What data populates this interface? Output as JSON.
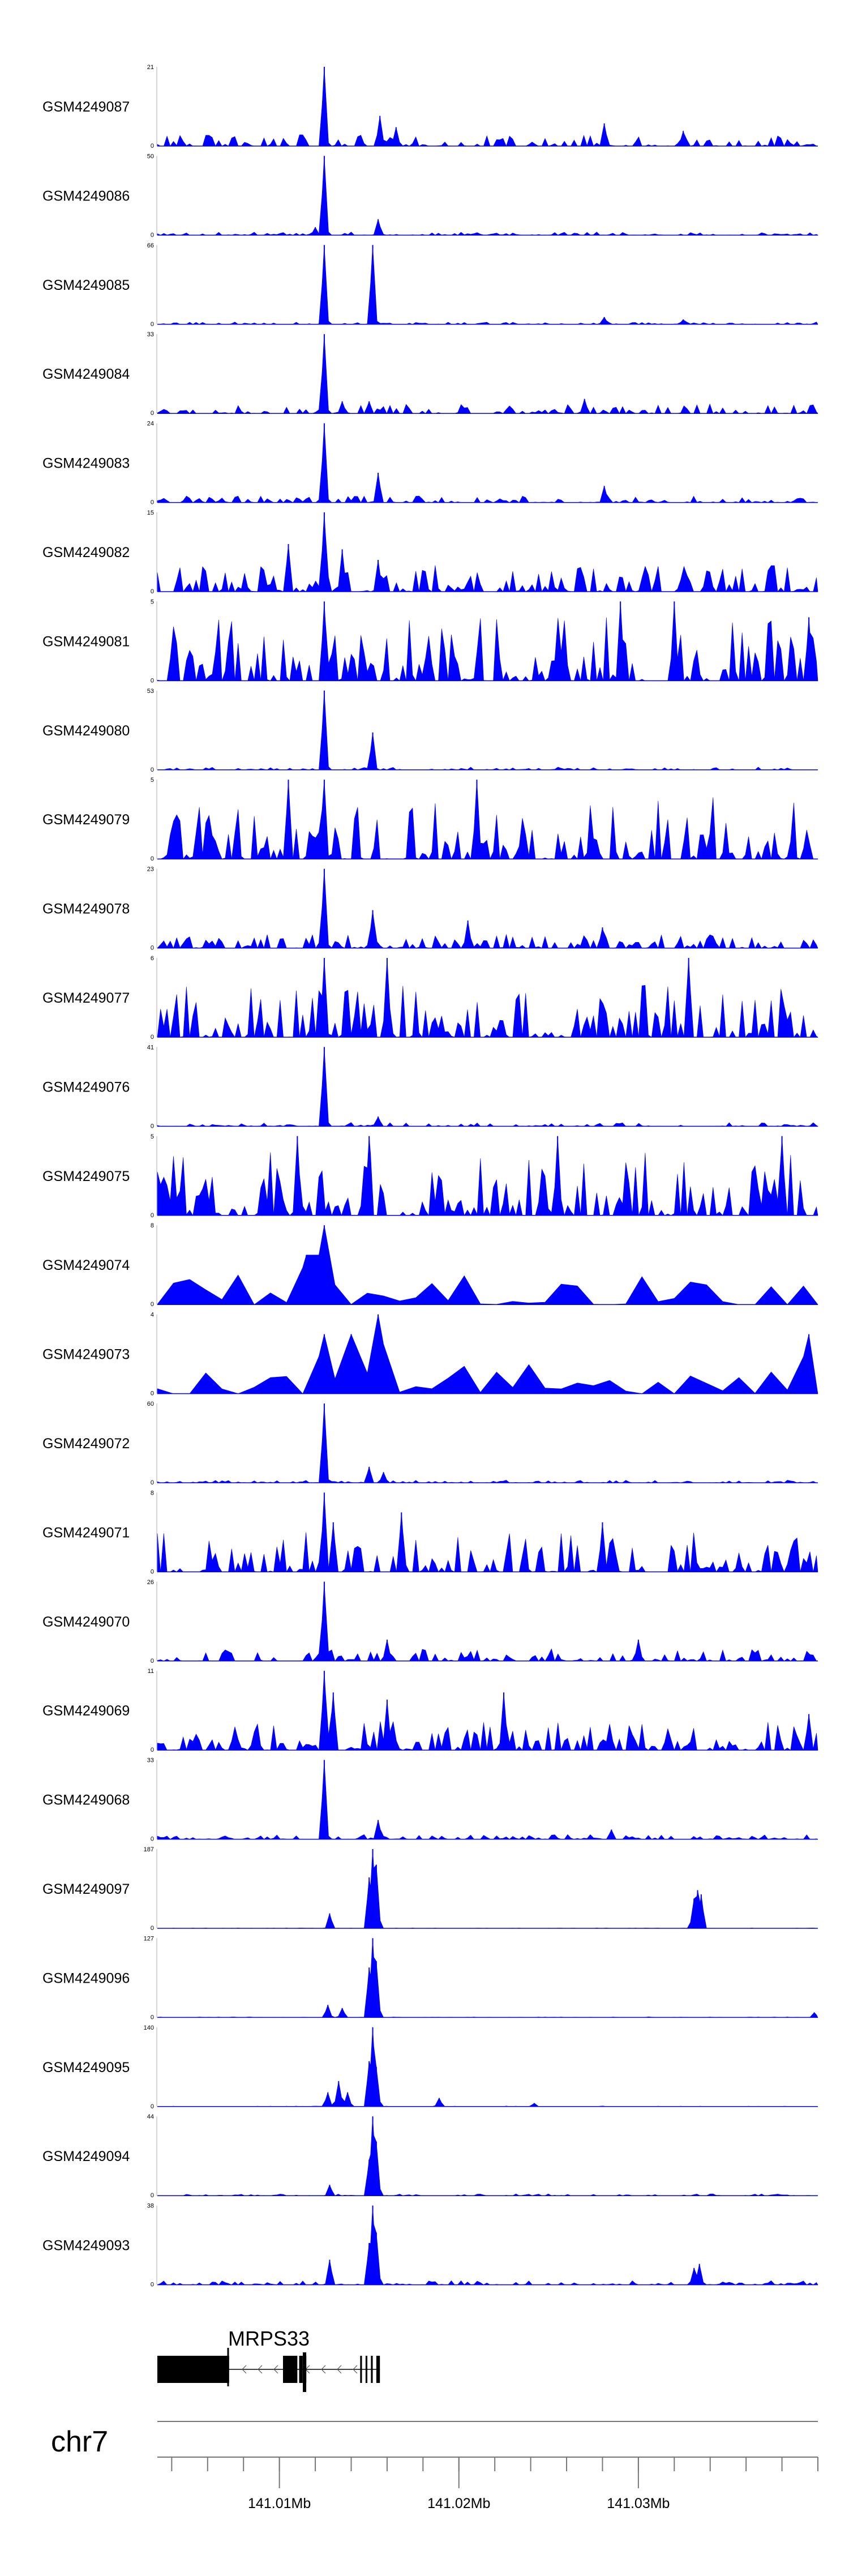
{
  "chart_data": {
    "type": "area",
    "title": "",
    "colors": {
      "signal": "#0000ff",
      "gene": "#000000",
      "axis": "#777777"
    },
    "xlim": [
      141.0032,
      141.04
    ],
    "x_unit": "Mb",
    "tracks": [
      {
        "name": "GSM4249087",
        "ymax": 21,
        "ymin": 0,
        "peaks": [
          [
            141.0125,
            21
          ],
          [
            141.0156,
            8
          ],
          [
            141.0165,
            5
          ],
          [
            141.0281,
            6
          ],
          [
            141.0325,
            4
          ]
        ],
        "noise": 3,
        "sparse": false
      },
      {
        "name": "GSM4249086",
        "ymax": 50,
        "ymin": 0,
        "peaks": [
          [
            141.0125,
            50
          ],
          [
            141.0155,
            10
          ],
          [
            141.012,
            5
          ]
        ],
        "noise": 2,
        "sparse": false
      },
      {
        "name": "GSM4249085",
        "ymax": 66,
        "ymin": 0,
        "peaks": [
          [
            141.0125,
            66
          ],
          [
            141.0152,
            66
          ],
          [
            141.0281,
            6
          ],
          [
            141.0325,
            4
          ]
        ],
        "noise": 2,
        "sparse": false
      },
      {
        "name": "GSM4249084",
        "ymax": 33,
        "ymin": 0,
        "peaks": [
          [
            141.0125,
            33
          ],
          [
            141.0135,
            5
          ],
          [
            141.015,
            5
          ],
          [
            141.027,
            6
          ]
        ],
        "noise": 4,
        "sparse": false
      },
      {
        "name": "GSM4249083",
        "ymax": 24,
        "ymin": 0,
        "peaks": [
          [
            141.0125,
            24
          ],
          [
            141.0155,
            9
          ],
          [
            141.0281,
            5
          ]
        ],
        "noise": 2,
        "sparse": false
      },
      {
        "name": "GSM4249082",
        "ymax": 15,
        "ymin": 0,
        "peaks": [
          [
            141.0125,
            15
          ],
          [
            141.0105,
            9
          ],
          [
            141.0135,
            8
          ],
          [
            141.0155,
            6
          ]
        ],
        "noise": 5,
        "sparse": false
      },
      {
        "name": "GSM4249081",
        "ymax": 5,
        "ymin": 0,
        "peaks": [
          [
            141.0125,
            5
          ],
          [
            141.029,
            5
          ],
          [
            141.032,
            5
          ],
          [
            141.0395,
            4
          ]
        ],
        "noise": 4,
        "sparse": false
      },
      {
        "name": "GSM4249080",
        "ymax": 53,
        "ymin": 0,
        "peaks": [
          [
            141.0125,
            53
          ],
          [
            141.0152,
            25
          ]
        ],
        "noise": 2,
        "sparse": false
      },
      {
        "name": "GSM4249079",
        "ymax": 5,
        "ymin": 0,
        "peaks": [
          [
            141.0105,
            5
          ],
          [
            141.0125,
            5
          ],
          [
            141.021,
            5
          ]
        ],
        "noise": 4,
        "sparse": false
      },
      {
        "name": "GSM4249078",
        "ymax": 23,
        "ymin": 0,
        "peaks": [
          [
            141.0125,
            23
          ],
          [
            141.0152,
            11
          ],
          [
            141.0205,
            8
          ],
          [
            141.028,
            6
          ]
        ],
        "noise": 4,
        "sparse": false
      },
      {
        "name": "GSM4249077",
        "ymax": 6,
        "ymin": 0,
        "peaks": [
          [
            141.0125,
            6
          ],
          [
            141.016,
            6
          ],
          [
            141.0328,
            6
          ]
        ],
        "noise": 4,
        "sparse": false
      },
      {
        "name": "GSM4249076",
        "ymax": 41,
        "ymin": 0,
        "peaks": [
          [
            141.0125,
            41
          ],
          [
            141.0155,
            5
          ]
        ],
        "noise": 2,
        "sparse": false
      },
      {
        "name": "GSM4249075",
        "ymax": 5,
        "ymin": 0,
        "peaks": [
          [
            141.011,
            5
          ],
          [
            141.015,
            5
          ],
          [
            141.0255,
            5
          ],
          [
            141.038,
            5
          ]
        ],
        "noise": 4,
        "sparse": false
      },
      {
        "name": "GSM4249074",
        "ymax": 8,
        "ymin": 0,
        "peaks": [
          [
            141.0125,
            8
          ],
          [
            141.0115,
            5
          ]
        ],
        "noise": 3,
        "sparse": true
      },
      {
        "name": "GSM4249073",
        "ymax": 4,
        "ymin": 0,
        "peaks": [
          [
            141.0155,
            4
          ],
          [
            141.0125,
            3
          ],
          [
            141.014,
            3
          ],
          [
            141.0395,
            3
          ]
        ],
        "noise": 2,
        "sparse": true
      },
      {
        "name": "GSM4249072",
        "ymax": 60,
        "ymin": 0,
        "peaks": [
          [
            141.0125,
            60
          ],
          [
            141.015,
            12
          ],
          [
            141.0158,
            8
          ]
        ],
        "noise": 2,
        "sparse": false
      },
      {
        "name": "GSM4249071",
        "ymax": 8,
        "ymin": 0,
        "peaks": [
          [
            141.0125,
            8
          ],
          [
            141.013,
            5
          ],
          [
            141.0168,
            6
          ],
          [
            141.028,
            5
          ]
        ],
        "noise": 4,
        "sparse": false
      },
      {
        "name": "GSM4249070",
        "ymax": 26,
        "ymin": 0,
        "peaks": [
          [
            141.0125,
            26
          ],
          [
            141.016,
            7
          ],
          [
            141.03,
            7
          ]
        ],
        "noise": 4,
        "sparse": false
      },
      {
        "name": "GSM4249069",
        "ymax": 11,
        "ymin": 0,
        "peaks": [
          [
            141.0125,
            11
          ],
          [
            141.013,
            8
          ],
          [
            141.016,
            7
          ],
          [
            141.0225,
            8
          ],
          [
            141.0395,
            5
          ]
        ],
        "noise": 4,
        "sparse": false
      },
      {
        "name": "GSM4249068",
        "ymax": 33,
        "ymin": 0,
        "peaks": [
          [
            141.0125,
            33
          ],
          [
            141.0155,
            8
          ],
          [
            141.0285,
            4
          ]
        ],
        "noise": 2,
        "sparse": false
      },
      {
        "name": "GSM4249097",
        "ymax": 187,
        "ymin": 0,
        "peaks": [
          [
            141.0128,
            35
          ],
          [
            141.015,
            120
          ],
          [
            141.0152,
            187
          ],
          [
            141.0154,
            150
          ],
          [
            141.0331,
            70
          ],
          [
            141.0333,
            90
          ],
          [
            141.0335,
            80
          ]
        ],
        "noise": 1,
        "sparse": false
      },
      {
        "name": "GSM4249096",
        "ymax": 127,
        "ymin": 0,
        "peaks": [
          [
            141.0127,
            20
          ],
          [
            141.0135,
            15
          ],
          [
            141.015,
            80
          ],
          [
            141.0152,
            127
          ],
          [
            141.0154,
            90
          ],
          [
            141.0398,
            8
          ]
        ],
        "noise": 1,
        "sparse": false
      },
      {
        "name": "GSM4249095",
        "ymax": 140,
        "ymin": 0,
        "peaks": [
          [
            141.0127,
            25
          ],
          [
            141.0133,
            45
          ],
          [
            141.0138,
            25
          ],
          [
            141.015,
            80
          ],
          [
            141.0152,
            140
          ],
          [
            141.0154,
            70
          ],
          [
            141.0189,
            15
          ],
          [
            141.0242,
            6
          ]
        ],
        "noise": 1,
        "sparse": false
      },
      {
        "name": "GSM4249094",
        "ymax": 44,
        "ymin": 0,
        "peaks": [
          [
            141.0128,
            6
          ],
          [
            141.015,
            20
          ],
          [
            141.0152,
            44
          ],
          [
            141.0154,
            30
          ]
        ],
        "noise": 1,
        "sparse": false
      },
      {
        "name": "GSM4249093",
        "ymax": 38,
        "ymin": 0,
        "peaks": [
          [
            141.0128,
            12
          ],
          [
            141.015,
            20
          ],
          [
            141.0152,
            38
          ],
          [
            141.0154,
            25
          ],
          [
            141.0331,
            8
          ],
          [
            141.0334,
            10
          ]
        ],
        "noise": 2,
        "sparse": false
      }
    ],
    "gene": {
      "name": "MRPS33",
      "strand": "-",
      "start": 141.0032,
      "end": 141.0156,
      "exons": [
        [
          141.0032,
          141.0072
        ],
        [
          141.0102,
          141.011
        ],
        [
          141.0111,
          141.0113
        ],
        [
          141.0114,
          141.0115
        ],
        [
          141.0145,
          141.0146
        ],
        [
          141.0148,
          141.0149
        ],
        [
          141.0151,
          141.0152
        ],
        [
          141.0154,
          141.0156
        ]
      ],
      "utr_exons": [
        [
          141.0032,
          141.0072
        ]
      ]
    },
    "axis": {
      "chrom": "chr7",
      "major_ticks": [
        {
          "value": 141.01,
          "label": "141.01Mb"
        },
        {
          "value": 141.02,
          "label": "141.02Mb"
        },
        {
          "value": 141.03,
          "label": "141.03Mb"
        }
      ],
      "minor_tick_step": 0.002
    }
  }
}
